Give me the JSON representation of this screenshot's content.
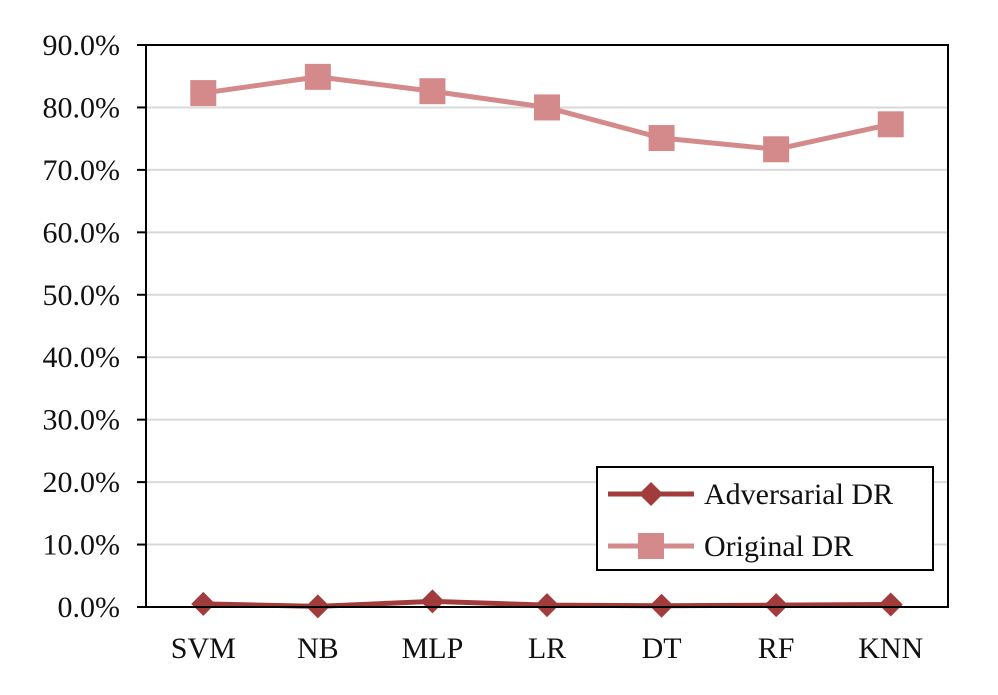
{
  "chart_data": {
    "type": "line",
    "title": "",
    "xlabel": "",
    "ylabel": "",
    "categories": [
      "SVM",
      "NB",
      "MLP",
      "LR",
      "DT",
      "RF",
      "KNN"
    ],
    "ylim": [
      0,
      90
    ],
    "yticks": [
      0,
      10,
      20,
      30,
      40,
      50,
      60,
      70,
      80,
      90
    ],
    "ytick_labels": [
      "0.0%",
      "10.0%",
      "20.0%",
      "30.0%",
      "40.0%",
      "50.0%",
      "60.0%",
      "70.0%",
      "80.0%",
      "90.0%"
    ],
    "grid": true,
    "legend_position": "bottom-right",
    "series": [
      {
        "name": "Adversarial DR",
        "values": [
          0.5,
          0.1,
          0.9,
          0.3,
          0.2,
          0.3,
          0.4
        ],
        "color": "#a23b3b",
        "marker": "diamond"
      },
      {
        "name": "Original DR",
        "values": [
          82.3,
          84.9,
          82.6,
          80.0,
          75.1,
          73.3,
          77.3
        ],
        "color": "#d48a8b",
        "marker": "square"
      }
    ]
  }
}
